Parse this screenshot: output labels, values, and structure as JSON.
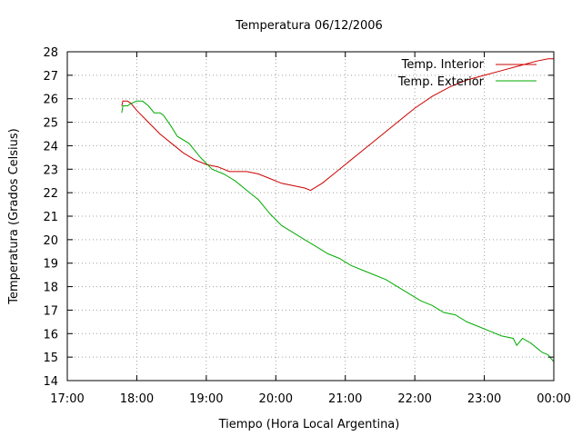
{
  "chart_data": {
    "type": "line",
    "title": "Temperatura 06/12/2006",
    "xlabel": "Tiempo (Hora Local Argentina)",
    "ylabel": "Temperatura (Grados Celsius)",
    "xlim": [
      "17:00",
      "00:00"
    ],
    "ylim": [
      14,
      28
    ],
    "x_ticks": [
      "17:00",
      "18:00",
      "19:00",
      "20:00",
      "21:00",
      "22:00",
      "23:00",
      "00:00"
    ],
    "y_ticks": [
      "14",
      "15",
      "16",
      "17",
      "18",
      "19",
      "20",
      "21",
      "22",
      "23",
      "24",
      "25",
      "26",
      "27",
      "28"
    ],
    "grid": true,
    "legend_position": "top-right",
    "series": [
      {
        "name": "Temp. Interior",
        "color": "#cc0000",
        "points": [
          [
            "17:47",
            25.7
          ],
          [
            "17:48",
            25.9
          ],
          [
            "17:52",
            25.9
          ],
          [
            "17:55",
            25.8
          ],
          [
            "18:00",
            25.5
          ],
          [
            "18:10",
            25.0
          ],
          [
            "18:20",
            24.5
          ],
          [
            "18:30",
            24.1
          ],
          [
            "18:40",
            23.7
          ],
          [
            "18:50",
            23.4
          ],
          [
            "19:00",
            23.2
          ],
          [
            "19:10",
            23.1
          ],
          [
            "19:20",
            22.9
          ],
          [
            "19:35",
            22.9
          ],
          [
            "19:45",
            22.8
          ],
          [
            "19:55",
            22.6
          ],
          [
            "20:05",
            22.4
          ],
          [
            "20:15",
            22.3
          ],
          [
            "20:25",
            22.2
          ],
          [
            "20:30",
            22.1
          ],
          [
            "20:40",
            22.4
          ],
          [
            "20:50",
            22.8
          ],
          [
            "21:00",
            23.2
          ],
          [
            "21:15",
            23.8
          ],
          [
            "21:30",
            24.4
          ],
          [
            "21:45",
            25.0
          ],
          [
            "22:00",
            25.6
          ],
          [
            "22:15",
            26.1
          ],
          [
            "22:30",
            26.5
          ],
          [
            "22:45",
            26.8
          ],
          [
            "23:00",
            27.0
          ],
          [
            "23:15",
            27.2
          ],
          [
            "23:30",
            27.4
          ],
          [
            "23:45",
            27.6
          ],
          [
            "23:55",
            27.7
          ],
          [
            "00:00",
            27.7
          ]
        ]
      },
      {
        "name": "Temp. Exterior",
        "color": "#00aa00",
        "points": [
          [
            "17:47",
            25.4
          ],
          [
            "17:48",
            25.7
          ],
          [
            "17:52",
            25.7
          ],
          [
            "17:55",
            25.8
          ],
          [
            "18:00",
            25.9
          ],
          [
            "18:05",
            25.9
          ],
          [
            "18:10",
            25.7
          ],
          [
            "18:15",
            25.4
          ],
          [
            "18:20",
            25.4
          ],
          [
            "18:23",
            25.3
          ],
          [
            "18:30",
            24.8
          ],
          [
            "18:35",
            24.4
          ],
          [
            "18:45",
            24.1
          ],
          [
            "18:55",
            23.5
          ],
          [
            "19:05",
            23.0
          ],
          [
            "19:15",
            22.8
          ],
          [
            "19:25",
            22.5
          ],
          [
            "19:35",
            22.1
          ],
          [
            "19:45",
            21.7
          ],
          [
            "19:55",
            21.1
          ],
          [
            "20:05",
            20.6
          ],
          [
            "20:15",
            20.3
          ],
          [
            "20:25",
            20.0
          ],
          [
            "20:35",
            19.7
          ],
          [
            "20:45",
            19.4
          ],
          [
            "20:55",
            19.2
          ],
          [
            "21:05",
            18.9
          ],
          [
            "21:15",
            18.7
          ],
          [
            "21:25",
            18.5
          ],
          [
            "21:35",
            18.3
          ],
          [
            "21:45",
            18.0
          ],
          [
            "21:55",
            17.7
          ],
          [
            "22:05",
            17.4
          ],
          [
            "22:15",
            17.2
          ],
          [
            "22:25",
            16.9
          ],
          [
            "22:35",
            16.8
          ],
          [
            "22:45",
            16.5
          ],
          [
            "22:55",
            16.3
          ],
          [
            "23:05",
            16.1
          ],
          [
            "23:15",
            15.9
          ],
          [
            "23:25",
            15.8
          ],
          [
            "23:28",
            15.5
          ],
          [
            "23:33",
            15.8
          ],
          [
            "23:40",
            15.6
          ],
          [
            "23:45",
            15.4
          ],
          [
            "23:50",
            15.2
          ],
          [
            "23:55",
            15.1
          ],
          [
            "00:00",
            14.8
          ]
        ]
      }
    ]
  }
}
